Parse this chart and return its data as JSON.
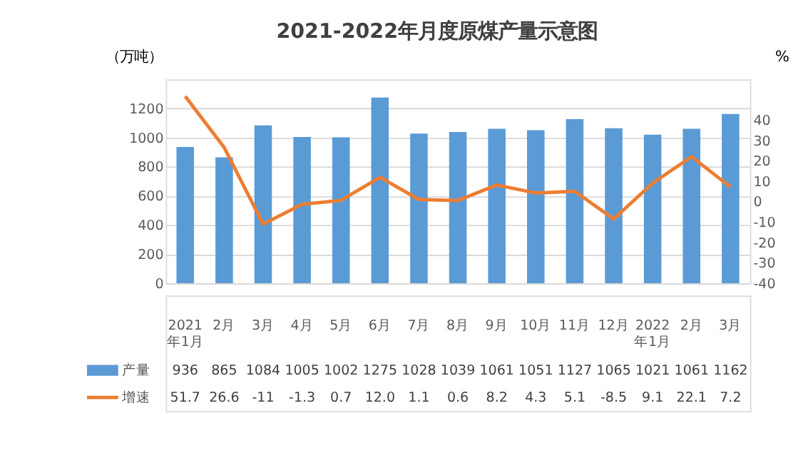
{
  "chart_data": {
    "type": "bar",
    "title": "2021-2022年月度原煤产量示意图",
    "categories": [
      "2021年1月",
      "2月",
      "3月",
      "4月",
      "5月",
      "6月",
      "7月",
      "8月",
      "9月",
      "10月",
      "11月",
      "12月",
      "2022年1月",
      "2月",
      "3月"
    ],
    "series": [
      {
        "name": "产量",
        "color": "#5b9bd5",
        "values": [
          936,
          865,
          1084,
          1005,
          1002,
          1275,
          1028,
          1039,
          1061,
          1051,
          1127,
          1065,
          1021,
          1061,
          1162
        ]
      },
      {
        "name": "增速",
        "type": "line",
        "axis": "y2",
        "color": "#ed7d31",
        "values": [
          51.7,
          26.6,
          -11,
          -1.3,
          0.7,
          12.0,
          1.1,
          0.6,
          8.2,
          4.3,
          5.1,
          -8.5,
          9.1,
          22.1,
          7.2
        ],
        "value_labels": [
          "51.7",
          "26.6",
          "-11",
          "-1.3",
          "0.7",
          "12.0",
          "1.1",
          "0.6",
          "8.2",
          "4.3",
          "5.1",
          "-8.5",
          "9.1",
          "22.1",
          "7.2"
        ]
      }
    ],
    "ylabel": "（万吨）",
    "y2label": "%",
    "ylim": [
      0,
      1400
    ],
    "yticks": [
      0,
      200,
      400,
      600,
      800,
      1000,
      1200
    ],
    "y2lim": [
      -40,
      60
    ],
    "y2ticks": [
      -40,
      -30,
      -20,
      -10,
      0,
      10,
      20,
      30,
      40
    ],
    "grid": "y",
    "legend": "bottom",
    "data_labels": true,
    "marker": "none",
    "line_style": "solid"
  }
}
